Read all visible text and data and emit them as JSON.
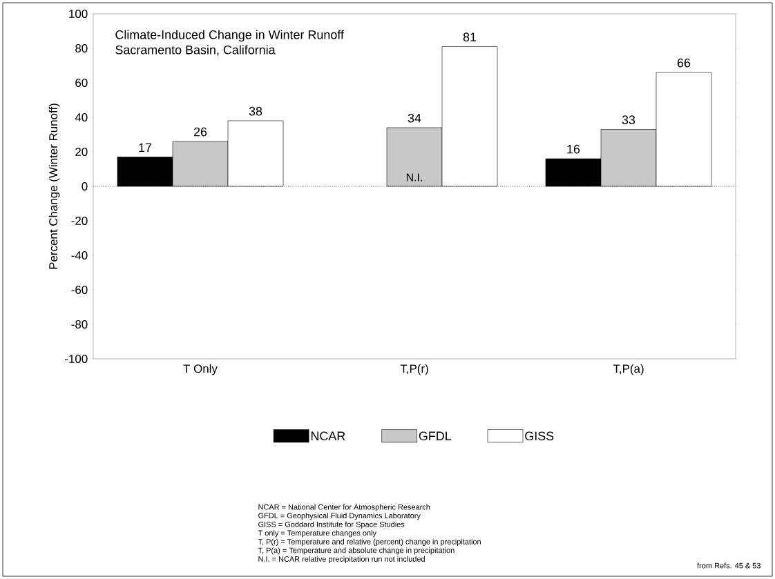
{
  "chart_data": {
    "type": "bar",
    "title": "Climate-Induced Change in Winter Runoff",
    "subtitle": "Sacramento Basin, California",
    "ylabel": "Percent Change (Winter Runoff)",
    "categories": [
      "T Only",
      "T,P(r)",
      "T,P(a)"
    ],
    "series": [
      {
        "name": "NCAR",
        "color": "#000000",
        "values": [
          17,
          null,
          16
        ]
      },
      {
        "name": "GFDL",
        "color": "#c8c8c8",
        "values": [
          26,
          34,
          33
        ]
      },
      {
        "name": "GISS",
        "color": "#ffffff",
        "values": [
          38,
          81,
          66
        ]
      }
    ],
    "ylim": [
      -100,
      100
    ],
    "yticks": [
      -100,
      -80,
      -60,
      -40,
      -20,
      0,
      20,
      40,
      60,
      80,
      100
    ],
    "data_labels": true,
    "legend": "bottom",
    "ref_lines": [
      {
        "axis": "y",
        "value": 0,
        "line_style": "dotted"
      }
    ],
    "annotations": [
      {
        "text": "N.I.",
        "x": "T,P(r)",
        "y": 0
      },
      "NCAR = National Center for Atmospheric Research",
      "GFDL = Geophysical Fluid Dynamics Laboratory",
      "GISS = Goddard Institute for Space Studies",
      "T only = Temperature changes only",
      "T, P(r) = Temperature and relative (percent) change in precipitation",
      "T, P(a) = Temperature and absolute change in precipitation",
      "N.I. = NCAR relative precipitation run not included",
      "from Refs. 45 & 53"
    ]
  }
}
